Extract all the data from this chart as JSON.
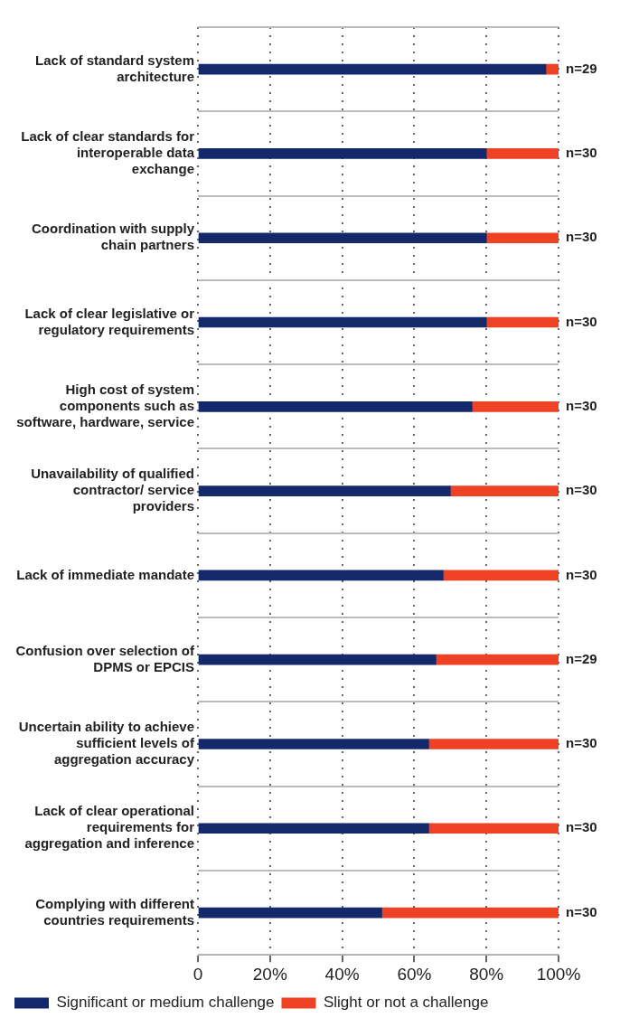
{
  "chart_data": {
    "type": "bar",
    "orientation": "horizontal",
    "stacked": true,
    "categories": [
      "Lack of standard system architecture",
      "Lack of clear standards for interoperable data exchange",
      "Coordination with supply chain partners",
      "Lack of clear legislative or regulatory requirements",
      "High cost of system components such as software, hardware, service",
      "Unavailability of qualified contractor/ service providers",
      "Lack of immediate mandate",
      "Confusion over selection of DPMS or EPCIS",
      "Uncertain ability to achieve sufficient levels of aggregation accuracy",
      "Lack of clear operational requirements for aggregation and inference",
      "Complying with different countries requirements"
    ],
    "series": [
      {
        "name": "Significant or medium challenge",
        "color": "#13296b",
        "values": [
          96.5,
          80,
          80,
          80,
          76,
          70,
          68,
          66,
          64,
          64,
          51
        ]
      },
      {
        "name": "Slight or not a challenge",
        "color": "#ef4123",
        "values": [
          3.5,
          20,
          20,
          20,
          24,
          30,
          32,
          34,
          36,
          36,
          49
        ]
      }
    ],
    "xlim": [
      0,
      100
    ],
    "xticks": [
      0,
      {
        "value": 20,
        "label": "20%"
      },
      {
        "value": 40,
        "label": "40%"
      },
      {
        "value": 60,
        "label": "60%"
      },
      {
        "value": 80,
        "label": "80%"
      },
      {
        "value": 100,
        "label": "100%"
      }
    ],
    "grid": true,
    "legend": "bottom left",
    "annotations": [
      "n=29",
      "n=30",
      "n=30",
      "n=30",
      "n=30",
      "n=30",
      "n=30",
      "n=29",
      "n=30",
      "n=30",
      "n=30"
    ]
  }
}
